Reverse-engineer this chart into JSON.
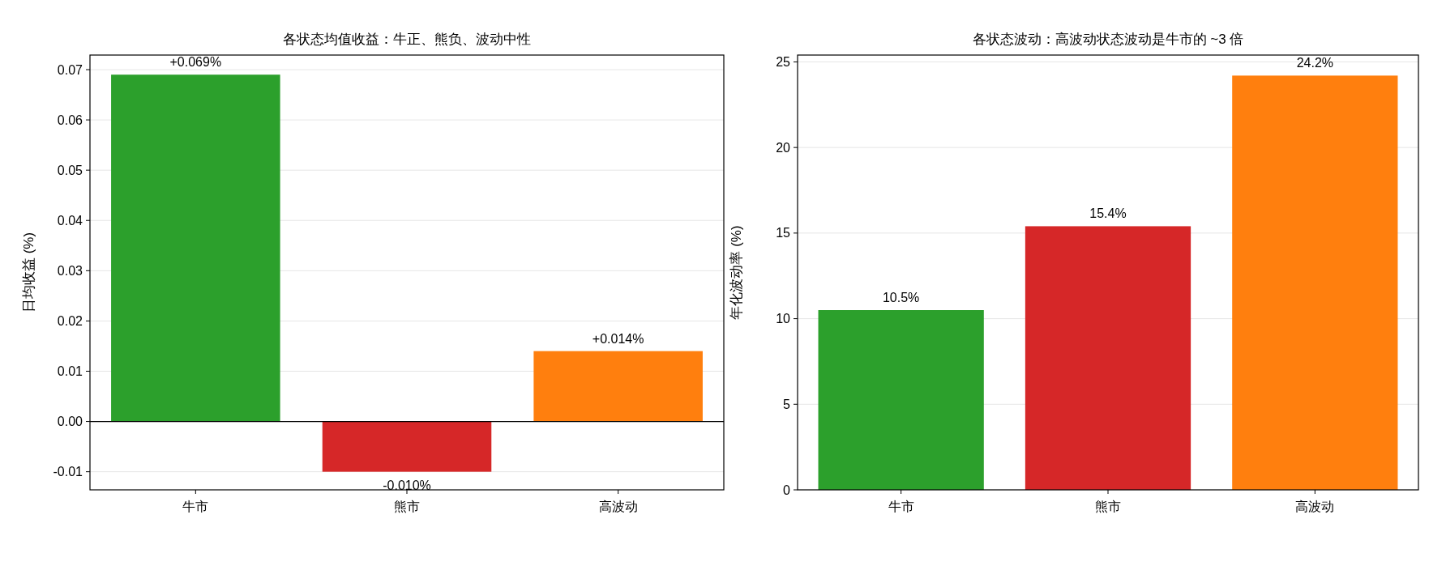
{
  "chart_data": [
    {
      "type": "bar",
      "title": "各状态均值收益：牛正、熊负、波动中性",
      "ylabel": "日均收益 (%)",
      "categories": [
        "牛市",
        "熊市",
        "高波动"
      ],
      "values": [
        0.069,
        -0.01,
        0.014
      ],
      "colors": [
        "#2ca02c",
        "#d62728",
        "#ff7f0e"
      ],
      "value_labels": [
        "+0.069%",
        "-0.010%",
        "+0.014%"
      ],
      "ylim": [
        -0.0136,
        0.0729
      ],
      "yticks": [
        {
          "value": -0.01,
          "label": "-0.01"
        },
        {
          "value": 0,
          "label": "0.00"
        },
        {
          "value": 0.01,
          "label": "0.01"
        },
        {
          "value": 0.02,
          "label": "0.02"
        },
        {
          "value": 0.03,
          "label": "0.03"
        },
        {
          "value": 0.04,
          "label": "0.04"
        },
        {
          "value": 0.05,
          "label": "0.05"
        },
        {
          "value": 0.06,
          "label": "0.06"
        },
        {
          "value": 0.07,
          "label": "0.07"
        }
      ],
      "grid": "y",
      "ref_lines": [
        {
          "axis": "y",
          "value": 0,
          "color": "#000000"
        }
      ]
    },
    {
      "type": "bar",
      "title": "各状态波动：高波动状态波动是牛市的 ~3 倍",
      "ylabel": "年化波动率 (%)",
      "categories": [
        "牛市",
        "熊市",
        "高波动"
      ],
      "values": [
        10.5,
        15.4,
        24.2
      ],
      "colors": [
        "#2ca02c",
        "#d62728",
        "#ff7f0e"
      ],
      "value_labels": [
        "10.5%",
        "15.4%",
        "24.2%"
      ],
      "ylim": [
        0,
        25.4
      ],
      "yticks": [
        0,
        5,
        10,
        15,
        20,
        25
      ],
      "grid": "y"
    }
  ]
}
